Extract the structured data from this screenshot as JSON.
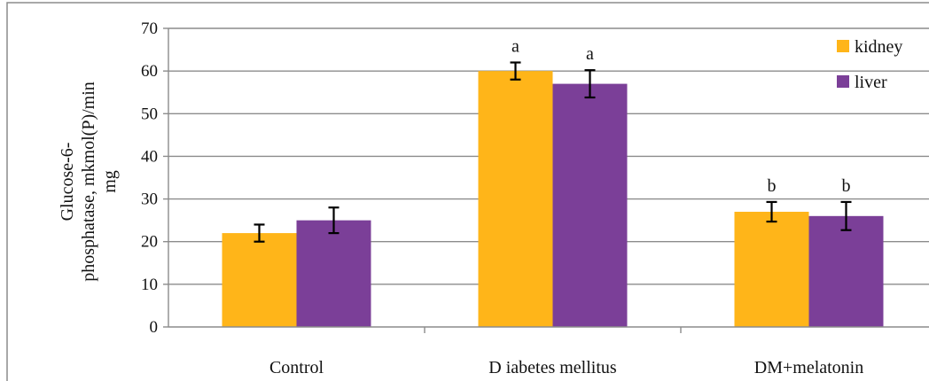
{
  "chart_data": {
    "type": "bar",
    "categories": [
      "Control",
      "D iabetes mellitus",
      "DM+melatonin"
    ],
    "series": [
      {
        "name": "kidney",
        "color": "#FFB519",
        "values": [
          22,
          60,
          27
        ],
        "errors": [
          2,
          2,
          2.3
        ],
        "sig": [
          "",
          "a",
          "b"
        ]
      },
      {
        "name": "liver",
        "color": "#7B3F98",
        "values": [
          25,
          57,
          26
        ],
        "errors": [
          3,
          3.2,
          3.3
        ],
        "sig": [
          "",
          "a",
          "b"
        ]
      }
    ],
    "ylabel_lines": [
      "Glucose-6-",
      "phosphatase, mkmol(P)/min",
      "mg"
    ],
    "ylim": [
      0,
      70
    ],
    "yticks": [
      0,
      10,
      20,
      30,
      40,
      50,
      60,
      70
    ],
    "grid": true,
    "legend_position": "top-right"
  }
}
